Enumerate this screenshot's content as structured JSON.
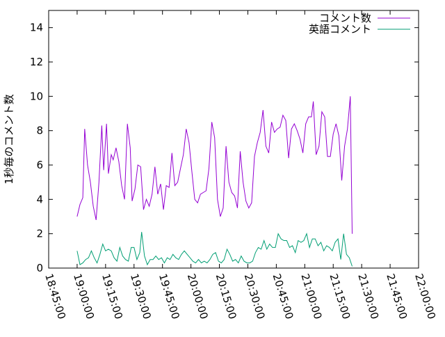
{
  "chart_data": {
    "type": "line",
    "title": "",
    "xlabel": "",
    "ylabel": "1秒毎のコメント数",
    "ylim": [
      0,
      15
    ],
    "yticks": [
      0,
      2,
      4,
      6,
      8,
      10,
      12,
      14
    ],
    "xlim": [
      "18:45:00",
      "22:00:00"
    ],
    "xticks": [
      "18:45:00",
      "19:00:00",
      "19:15:00",
      "19:30:00",
      "19:45:00",
      "20:00:00",
      "20:15:00",
      "20:30:00",
      "20:45:00",
      "21:00:00",
      "21:15:00",
      "21:30:00",
      "21:45:00",
      "22:00:00"
    ],
    "grid": false,
    "legend": "top-right",
    "series": [
      {
        "name": "コメント数",
        "color": "#9400d3",
        "points": [
          [
            "19:00:00",
            3.0
          ],
          [
            "19:01:30",
            3.7
          ],
          [
            "19:03:00",
            4.1
          ],
          [
            "19:04:00",
            8.1
          ],
          [
            "19:05:30",
            6.0
          ],
          [
            "19:07:00",
            5.0
          ],
          [
            "19:08:30",
            3.6
          ],
          [
            "19:10:00",
            2.8
          ],
          [
            "19:11:30",
            5.0
          ],
          [
            "19:13:00",
            8.3
          ],
          [
            "19:14:00",
            5.7
          ],
          [
            "19:15:30",
            8.4
          ],
          [
            "19:16:30",
            5.5
          ],
          [
            "19:18:00",
            6.6
          ],
          [
            "19:19:00",
            6.3
          ],
          [
            "19:20:30",
            7.0
          ],
          [
            "19:22:00",
            6.2
          ],
          [
            "19:23:30",
            4.8
          ],
          [
            "19:25:00",
            4.0
          ],
          [
            "19:26:30",
            8.4
          ],
          [
            "19:28:00",
            7.0
          ],
          [
            "19:29:00",
            3.9
          ],
          [
            "19:30:30",
            4.6
          ],
          [
            "19:32:00",
            6.0
          ],
          [
            "19:33:30",
            5.9
          ],
          [
            "19:35:00",
            3.4
          ],
          [
            "19:36:30",
            4.0
          ],
          [
            "19:38:00",
            3.6
          ],
          [
            "19:39:30",
            4.3
          ],
          [
            "19:41:00",
            5.9
          ],
          [
            "19:42:30",
            4.3
          ],
          [
            "19:44:00",
            4.9
          ],
          [
            "19:45:30",
            3.4
          ],
          [
            "19:47:00",
            4.8
          ],
          [
            "19:48:30",
            4.7
          ],
          [
            "19:50:00",
            6.7
          ],
          [
            "19:51:30",
            4.8
          ],
          [
            "19:53:00",
            5.0
          ],
          [
            "19:54:30",
            5.8
          ],
          [
            "19:56:00",
            6.6
          ],
          [
            "19:57:30",
            8.1
          ],
          [
            "19:59:00",
            7.3
          ],
          [
            "20:00:30",
            5.6
          ],
          [
            "20:02:00",
            4.0
          ],
          [
            "20:03:30",
            3.8
          ],
          [
            "20:05:00",
            4.3
          ],
          [
            "20:06:30",
            4.4
          ],
          [
            "20:08:00",
            4.5
          ],
          [
            "20:09:30",
            5.8
          ],
          [
            "20:11:00",
            8.5
          ],
          [
            "20:12:30",
            7.6
          ],
          [
            "20:14:00",
            4.0
          ],
          [
            "20:15:30",
            3.0
          ],
          [
            "20:17:00",
            3.5
          ],
          [
            "20:18:30",
            7.1
          ],
          [
            "20:20:00",
            5.0
          ],
          [
            "20:21:30",
            4.4
          ],
          [
            "20:23:00",
            4.2
          ],
          [
            "20:24:30",
            3.5
          ],
          [
            "20:26:00",
            6.8
          ],
          [
            "20:27:30",
            5.0
          ],
          [
            "20:29:00",
            3.9
          ],
          [
            "20:30:30",
            3.5
          ],
          [
            "20:32:00",
            3.8
          ],
          [
            "20:33:30",
            6.5
          ],
          [
            "20:35:00",
            7.3
          ],
          [
            "20:36:30",
            7.9
          ],
          [
            "20:38:00",
            9.2
          ],
          [
            "20:39:30",
            7.1
          ],
          [
            "20:41:00",
            6.7
          ],
          [
            "20:42:30",
            8.5
          ],
          [
            "20:44:00",
            7.9
          ],
          [
            "20:45:30",
            8.1
          ],
          [
            "20:47:00",
            8.2
          ],
          [
            "20:48:30",
            8.9
          ],
          [
            "20:50:00",
            8.6
          ],
          [
            "20:51:30",
            6.4
          ],
          [
            "20:53:00",
            8.1
          ],
          [
            "20:54:30",
            8.4
          ],
          [
            "20:56:00",
            8.0
          ],
          [
            "20:57:30",
            7.5
          ],
          [
            "20:59:00",
            6.7
          ],
          [
            "21:00:30",
            8.4
          ],
          [
            "21:02:00",
            8.8
          ],
          [
            "21:03:30",
            8.8
          ],
          [
            "21:04:30",
            9.7
          ],
          [
            "21:06:00",
            6.6
          ],
          [
            "21:07:30",
            7.1
          ],
          [
            "21:09:00",
            9.1
          ],
          [
            "21:10:30",
            8.8
          ],
          [
            "21:12:00",
            6.5
          ],
          [
            "21:13:30",
            6.5
          ],
          [
            "21:15:00",
            7.8
          ],
          [
            "21:16:30",
            8.4
          ],
          [
            "21:18:00",
            7.7
          ],
          [
            "21:19:30",
            5.1
          ],
          [
            "21:21:00",
            7.1
          ],
          [
            "21:22:30",
            8.1
          ],
          [
            "21:24:00",
            10.0
          ],
          [
            "21:25:00",
            2.0
          ]
        ]
      },
      {
        "name": "英語コメント",
        "color": "#009e73",
        "points": [
          [
            "19:00:00",
            1.0
          ],
          [
            "19:01:30",
            0.2
          ],
          [
            "19:03:00",
            0.3
          ],
          [
            "19:04:30",
            0.5
          ],
          [
            "19:06:00",
            0.6
          ],
          [
            "19:07:30",
            1.0
          ],
          [
            "19:09:00",
            0.6
          ],
          [
            "19:10:30",
            0.3
          ],
          [
            "19:12:00",
            0.8
          ],
          [
            "19:13:30",
            1.4
          ],
          [
            "19:15:00",
            1.0
          ],
          [
            "19:16:30",
            1.1
          ],
          [
            "19:18:00",
            1.0
          ],
          [
            "19:19:30",
            0.6
          ],
          [
            "19:21:00",
            0.4
          ],
          [
            "19:22:30",
            1.2
          ],
          [
            "19:24:00",
            0.7
          ],
          [
            "19:25:30",
            0.5
          ],
          [
            "19:27:00",
            0.4
          ],
          [
            "19:28:30",
            1.2
          ],
          [
            "19:30:00",
            1.2
          ],
          [
            "19:31:30",
            0.5
          ],
          [
            "19:33:00",
            0.9
          ],
          [
            "19:34:00",
            2.1
          ],
          [
            "19:35:30",
            0.7
          ],
          [
            "19:37:00",
            0.2
          ],
          [
            "19:38:30",
            0.5
          ],
          [
            "19:40:00",
            0.5
          ],
          [
            "19:41:30",
            0.7
          ],
          [
            "19:43:00",
            0.5
          ],
          [
            "19:44:30",
            0.6
          ],
          [
            "19:46:00",
            0.3
          ],
          [
            "19:47:30",
            0.6
          ],
          [
            "19:49:00",
            0.5
          ],
          [
            "19:50:30",
            0.8
          ],
          [
            "19:52:00",
            0.6
          ],
          [
            "19:53:30",
            0.5
          ],
          [
            "19:55:00",
            0.8
          ],
          [
            "19:56:30",
            1.0
          ],
          [
            "19:58:00",
            0.8
          ],
          [
            "19:59:30",
            0.6
          ],
          [
            "20:01:00",
            0.4
          ],
          [
            "20:02:30",
            0.3
          ],
          [
            "20:04:00",
            0.5
          ],
          [
            "20:05:30",
            0.3
          ],
          [
            "20:07:00",
            0.4
          ],
          [
            "20:08:30",
            0.3
          ],
          [
            "20:10:00",
            0.5
          ],
          [
            "20:11:30",
            0.8
          ],
          [
            "20:13:00",
            0.9
          ],
          [
            "20:14:30",
            0.4
          ],
          [
            "20:16:00",
            0.3
          ],
          [
            "20:17:30",
            0.5
          ],
          [
            "20:19:00",
            1.1
          ],
          [
            "20:20:30",
            0.8
          ],
          [
            "20:22:00",
            0.4
          ],
          [
            "20:23:30",
            0.5
          ],
          [
            "20:25:00",
            0.3
          ],
          [
            "20:26:30",
            0.7
          ],
          [
            "20:28:00",
            0.4
          ],
          [
            "20:29:30",
            0.3
          ],
          [
            "20:31:00",
            0.3
          ],
          [
            "20:32:30",
            0.4
          ],
          [
            "20:34:00",
            0.9
          ],
          [
            "20:35:30",
            1.2
          ],
          [
            "20:37:00",
            1.1
          ],
          [
            "20:38:30",
            1.6
          ],
          [
            "20:40:00",
            1.1
          ],
          [
            "20:41:30",
            1.4
          ],
          [
            "20:43:00",
            1.2
          ],
          [
            "20:44:30",
            1.2
          ],
          [
            "20:46:00",
            2.0
          ],
          [
            "20:47:30",
            1.7
          ],
          [
            "20:49:00",
            1.6
          ],
          [
            "20:50:30",
            1.6
          ],
          [
            "20:52:00",
            1.2
          ],
          [
            "20:53:30",
            1.3
          ],
          [
            "20:55:00",
            0.9
          ],
          [
            "20:56:30",
            1.6
          ],
          [
            "20:58:00",
            1.5
          ],
          [
            "20:59:30",
            1.6
          ],
          [
            "21:01:00",
            2.0
          ],
          [
            "21:02:30",
            1.2
          ],
          [
            "21:04:00",
            1.7
          ],
          [
            "21:05:30",
            1.7
          ],
          [
            "21:07:00",
            1.3
          ],
          [
            "21:08:30",
            1.5
          ],
          [
            "21:10:00",
            1.0
          ],
          [
            "21:11:30",
            1.3
          ],
          [
            "21:13:00",
            1.2
          ],
          [
            "21:14:30",
            1.0
          ],
          [
            "21:16:00",
            1.5
          ],
          [
            "21:17:30",
            1.7
          ],
          [
            "21:19:00",
            0.5
          ],
          [
            "21:20:30",
            2.0
          ],
          [
            "21:22:00",
            0.8
          ],
          [
            "21:23:30",
            0.6
          ],
          [
            "21:25:00",
            0.1
          ]
        ]
      }
    ]
  }
}
